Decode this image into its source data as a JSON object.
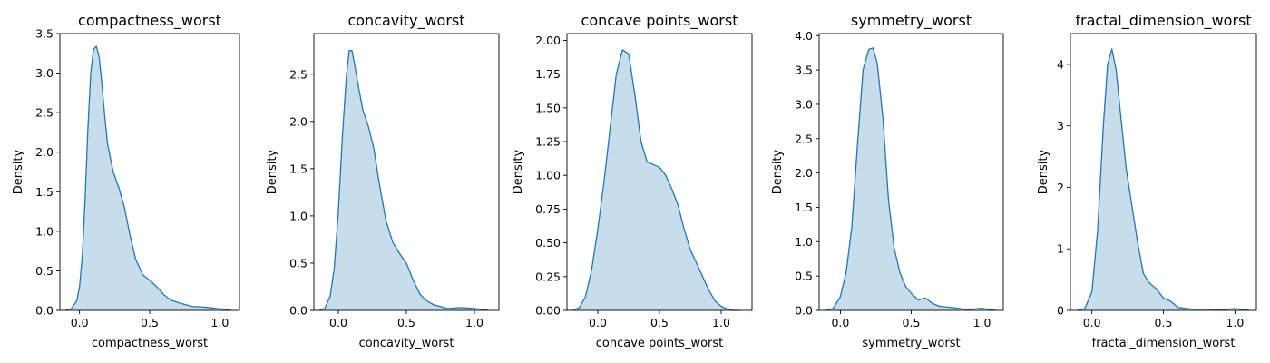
{
  "colors": {
    "line": "#1f77b4",
    "fill": "#1f77b4",
    "fill_opacity": 0.25,
    "axis": "#000000"
  },
  "chart_data": [
    {
      "type": "area",
      "title": "compactness_worst",
      "xlabel": "compactness_worst",
      "ylabel": "Density",
      "xlim": [
        -0.14,
        1.14
      ],
      "ylim": [
        0,
        3.5
      ],
      "xticks": [
        0.0,
        0.5,
        1.0
      ],
      "xtick_labels": [
        "0.0",
        "0.5",
        "1.0"
      ],
      "yticks": [
        0,
        0.5,
        1.0,
        1.5,
        2.0,
        2.5,
        3.0,
        3.5
      ],
      "ytick_labels": [
        "0.0",
        "0.5",
        "1.0",
        "1.5",
        "2.0",
        "2.5",
        "3.0",
        "3.5"
      ],
      "grid": false,
      "series": [
        {
          "x": [
            -0.1,
            -0.06,
            -0.02,
            0.0,
            0.02,
            0.04,
            0.06,
            0.08,
            0.1,
            0.12,
            0.14,
            0.16,
            0.18,
            0.2,
            0.24,
            0.28,
            0.32,
            0.36,
            0.4,
            0.45,
            0.5,
            0.55,
            0.6,
            0.65,
            0.7,
            0.8,
            0.9,
            1.0,
            1.08
          ],
          "y": [
            0.0,
            0.02,
            0.12,
            0.3,
            0.7,
            1.4,
            2.3,
            3.0,
            3.3,
            3.34,
            3.2,
            2.85,
            2.45,
            2.1,
            1.75,
            1.55,
            1.3,
            0.95,
            0.65,
            0.45,
            0.38,
            0.3,
            0.2,
            0.13,
            0.1,
            0.05,
            0.04,
            0.02,
            0.0
          ]
        }
      ]
    },
    {
      "type": "area",
      "title": "concavity_worst",
      "xlabel": "concavity_worst",
      "ylabel": "Density",
      "xlim": [
        -0.18,
        1.18
      ],
      "ylim": [
        0,
        2.93
      ],
      "xticks": [
        0.0,
        0.5,
        1.0
      ],
      "xtick_labels": [
        "0.0",
        "0.5",
        "1.0"
      ],
      "yticks": [
        0,
        0.5,
        1.0,
        1.5,
        2.0,
        2.5
      ],
      "ytick_labels": [
        "0.0",
        "0.5",
        "1.0",
        "1.5",
        "2.0",
        "2.5"
      ],
      "grid": false,
      "series": [
        {
          "x": [
            -0.14,
            -0.1,
            -0.06,
            -0.03,
            0.0,
            0.03,
            0.06,
            0.08,
            0.1,
            0.12,
            0.15,
            0.18,
            0.22,
            0.26,
            0.3,
            0.35,
            0.4,
            0.45,
            0.5,
            0.55,
            0.6,
            0.65,
            0.7,
            0.8,
            0.9,
            1.0,
            1.1
          ],
          "y": [
            0.0,
            0.02,
            0.15,
            0.45,
            1.05,
            1.85,
            2.5,
            2.75,
            2.75,
            2.6,
            2.35,
            2.12,
            1.95,
            1.72,
            1.35,
            0.95,
            0.72,
            0.6,
            0.5,
            0.32,
            0.17,
            0.1,
            0.06,
            0.02,
            0.03,
            0.02,
            0.0
          ]
        }
      ]
    },
    {
      "type": "area",
      "title": "concave points_worst",
      "xlabel": "concave points_worst",
      "ylabel": "Density",
      "xlim": [
        -0.25,
        1.25
      ],
      "ylim": [
        0,
        2.05
      ],
      "xticks": [
        0.0,
        0.5,
        1.0
      ],
      "xtick_labels": [
        "0.0",
        "0.5",
        "1.0"
      ],
      "yticks": [
        0,
        0.25,
        0.5,
        0.75,
        1.0,
        1.25,
        1.5,
        1.75,
        2.0
      ],
      "ytick_labels": [
        "0.00",
        "0.25",
        "0.50",
        "0.75",
        "1.00",
        "1.25",
        "1.50",
        "1.75",
        "2.00"
      ],
      "grid": false,
      "series": [
        {
          "x": [
            -0.2,
            -0.15,
            -0.1,
            -0.05,
            0.0,
            0.05,
            0.1,
            0.15,
            0.2,
            0.25,
            0.3,
            0.35,
            0.4,
            0.45,
            0.5,
            0.55,
            0.6,
            0.65,
            0.7,
            0.75,
            0.8,
            0.85,
            0.9,
            0.95,
            1.0,
            1.05,
            1.1,
            1.15
          ],
          "y": [
            0.0,
            0.02,
            0.1,
            0.3,
            0.6,
            0.95,
            1.35,
            1.75,
            1.93,
            1.9,
            1.6,
            1.25,
            1.1,
            1.08,
            1.06,
            1.0,
            0.9,
            0.78,
            0.6,
            0.45,
            0.35,
            0.25,
            0.15,
            0.07,
            0.03,
            0.01,
            0.0,
            0.0
          ]
        }
      ]
    },
    {
      "type": "area",
      "title": "symmetry_worst",
      "xlabel": "symmetry_worst",
      "ylabel": "Density",
      "xlim": [
        -0.15,
        1.15
      ],
      "ylim": [
        0,
        4.03
      ],
      "xticks": [
        0.0,
        0.5,
        1.0
      ],
      "xtick_labels": [
        "0.0",
        "0.5",
        "1.0"
      ],
      "yticks": [
        0,
        0.5,
        1.0,
        1.5,
        2.0,
        2.5,
        3.0,
        3.5,
        4.0
      ],
      "ytick_labels": [
        "0.0",
        "0.5",
        "1.0",
        "1.5",
        "2.0",
        "2.5",
        "3.0",
        "3.5",
        "4.0"
      ],
      "grid": false,
      "series": [
        {
          "x": [
            -0.1,
            -0.05,
            0.0,
            0.04,
            0.08,
            0.12,
            0.16,
            0.2,
            0.23,
            0.26,
            0.3,
            0.34,
            0.38,
            0.42,
            0.46,
            0.5,
            0.55,
            0.6,
            0.65,
            0.7,
            0.8,
            0.9,
            1.0,
            1.05,
            1.1
          ],
          "y": [
            0.0,
            0.03,
            0.2,
            0.55,
            1.2,
            2.4,
            3.5,
            3.8,
            3.82,
            3.6,
            2.8,
            1.6,
            0.9,
            0.55,
            0.35,
            0.25,
            0.15,
            0.18,
            0.1,
            0.06,
            0.04,
            0.01,
            0.03,
            0.01,
            0.0
          ]
        }
      ]
    },
    {
      "type": "area",
      "title": "fractal_dimension_worst",
      "xlabel": "fractal_dimension_worst",
      "ylabel": "Density",
      "xlim": [
        -0.15,
        1.15
      ],
      "ylim": [
        0,
        4.5
      ],
      "xticks": [
        0.0,
        0.5,
        1.0
      ],
      "xtick_labels": [
        "0.0",
        "0.5",
        "1.0"
      ],
      "yticks": [
        0,
        1,
        2,
        3,
        4
      ],
      "ytick_labels": [
        "0",
        "1",
        "2",
        "3",
        "4"
      ],
      "grid": false,
      "series": [
        {
          "x": [
            -0.1,
            -0.05,
            0.0,
            0.04,
            0.08,
            0.11,
            0.14,
            0.17,
            0.2,
            0.24,
            0.28,
            0.32,
            0.36,
            0.4,
            0.45,
            0.5,
            0.55,
            0.6,
            0.7,
            0.8,
            0.9,
            1.0,
            1.05,
            1.1
          ],
          "y": [
            0.0,
            0.03,
            0.3,
            1.3,
            3.0,
            4.0,
            4.25,
            3.9,
            3.2,
            2.3,
            1.7,
            1.1,
            0.6,
            0.45,
            0.35,
            0.2,
            0.15,
            0.05,
            0.02,
            0.02,
            0.01,
            0.03,
            0.01,
            0.0
          ]
        }
      ]
    }
  ]
}
